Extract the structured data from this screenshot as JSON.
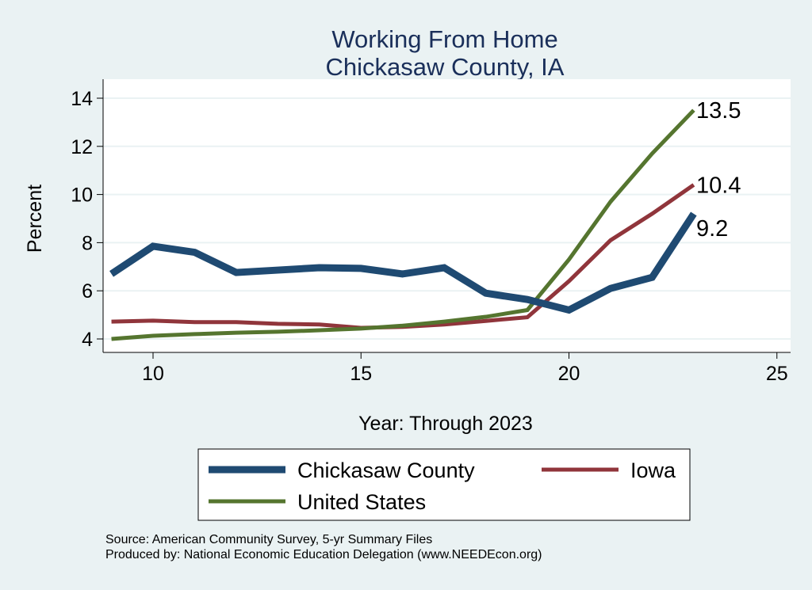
{
  "chart_data": {
    "type": "line",
    "title": "Working From Home",
    "subtitle": "Chickasaw County, IA",
    "xlabel": "Year: Through 2023",
    "ylabel": "Percent",
    "xlim": [
      8.8,
      25.3
    ],
    "ylim": [
      3.4,
      14.7
    ],
    "xticks": [
      10,
      15,
      20,
      25
    ],
    "yticks": [
      4,
      6,
      8,
      10,
      12,
      14
    ],
    "grid": true,
    "legend_placement": "bottom",
    "x": [
      9,
      10,
      11,
      12,
      13,
      14,
      15,
      16,
      17,
      18,
      19,
      20,
      21,
      22,
      23
    ],
    "series": [
      {
        "name": "Chickasaw County",
        "color": "#1f4a72",
        "width": 9,
        "values": [
          6.7,
          7.85,
          7.6,
          6.76,
          6.86,
          6.96,
          6.93,
          6.7,
          6.96,
          5.9,
          5.64,
          5.2,
          6.1,
          6.56,
          9.2
        ],
        "end_label": "9.2"
      },
      {
        "name": "Iowa",
        "color": "#90353b",
        "width": 5,
        "values": [
          4.72,
          4.76,
          4.7,
          4.7,
          4.63,
          4.6,
          4.46,
          4.5,
          4.6,
          4.75,
          4.9,
          6.4,
          8.1,
          9.2,
          10.4
        ],
        "end_label": "10.4"
      },
      {
        "name": "United States",
        "color": "#55752f",
        "width": 5,
        "values": [
          4.0,
          4.13,
          4.2,
          4.26,
          4.3,
          4.36,
          4.43,
          4.55,
          4.72,
          4.92,
          5.2,
          7.3,
          9.7,
          11.7,
          13.5
        ],
        "end_label": "13.5"
      }
    ]
  },
  "footer": {
    "source": "Source: American Community Survey, 5-yr Summary Files",
    "produced": "Produced by: National Economic Education Delegation (www.NEEDEcon.org)"
  }
}
